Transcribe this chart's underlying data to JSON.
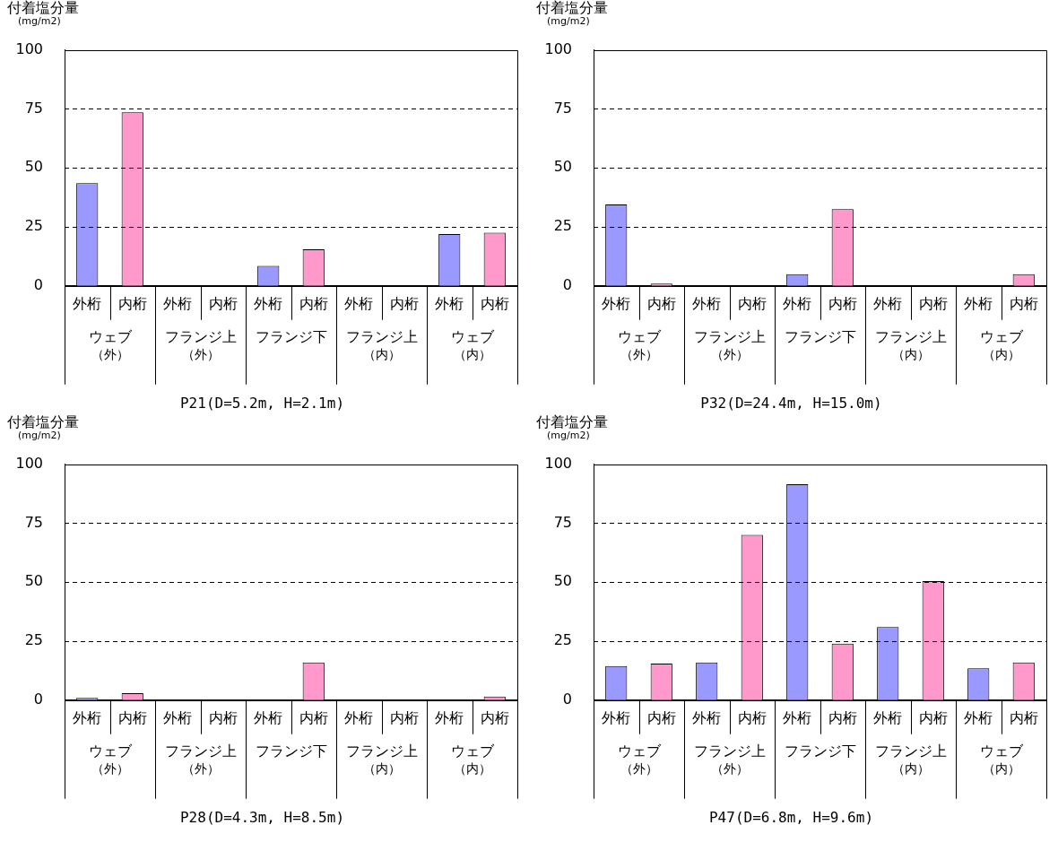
{
  "chart_data": [
    {
      "type": "bar",
      "title": "P21(D=5.2m, H=2.1m)",
      "ylabel": "付着塩分量(mg/m2)",
      "categories": [
        "外桁",
        "内桁",
        "外桁",
        "内桁",
        "外桁",
        "内桁",
        "外桁",
        "内桁",
        "外桁",
        "内桁"
      ],
      "values": [
        43.5,
        73.5,
        0,
        0,
        8.5,
        15.5,
        0,
        0,
        22,
        22.5
      ],
      "colors": [
        "#9999ff",
        "#ff99cc",
        "#9999ff",
        "#ff99cc",
        "#9999ff",
        "#ff99cc",
        "#9999ff",
        "#ff99cc",
        "#9999ff",
        "#ff99cc"
      ],
      "ylim": [
        0,
        100
      ],
      "yticks": [
        0,
        25,
        50,
        75,
        100
      ],
      "grid": "y",
      "annotations": [
        "ウェブ（外）",
        "フランジ上（外）",
        "フランジ下",
        "フランジ上（内）",
        "ウェブ（内）"
      ]
    },
    {
      "type": "bar",
      "title": "P32(D=24.4m, H=15.0m)",
      "ylabel": "付着塩分量(mg/m2)",
      "categories": [
        "外桁",
        "内桁",
        "外桁",
        "内桁",
        "外桁",
        "内桁",
        "外桁",
        "内桁",
        "外桁",
        "内桁"
      ],
      "values": [
        34.5,
        1,
        0,
        0,
        5,
        32.5,
        0,
        0,
        0,
        5
      ],
      "colors": [
        "#9999ff",
        "#ff99cc",
        "#9999ff",
        "#ff99cc",
        "#9999ff",
        "#ff99cc",
        "#9999ff",
        "#ff99cc",
        "#9999ff",
        "#ff99cc"
      ],
      "ylim": [
        0,
        100
      ],
      "yticks": [
        0,
        25,
        50,
        75,
        100
      ],
      "grid": "y",
      "annotations": [
        "ウェブ（外）",
        "フランジ上（外）",
        "フランジ下",
        "フランジ上（内）",
        "ウェブ（内）"
      ]
    },
    {
      "type": "bar",
      "title": "P28(D=4.3m, H=8.5m)",
      "ylabel": "付着塩分量(mg/m2)",
      "categories": [
        "外桁",
        "内桁",
        "外桁",
        "内桁",
        "外桁",
        "内桁",
        "外桁",
        "内桁",
        "外桁",
        "内桁"
      ],
      "values": [
        1,
        3,
        0,
        0,
        0,
        16,
        0,
        0,
        0,
        1.5
      ],
      "colors": [
        "#9999ff",
        "#ff99cc",
        "#9999ff",
        "#ff99cc",
        "#9999ff",
        "#ff99cc",
        "#9999ff",
        "#ff99cc",
        "#9999ff",
        "#ff99cc"
      ],
      "ylim": [
        0,
        100
      ],
      "yticks": [
        0,
        25,
        50,
        75,
        100
      ],
      "grid": "y",
      "annotations": [
        "ウェブ（外）",
        "フランジ上（外）",
        "フランジ下",
        "フランジ上（内）",
        "ウェブ（内）"
      ]
    },
    {
      "type": "bar",
      "title": "P47(D=6.8m, H=9.6m)",
      "ylabel": "付着塩分量(mg/m2)",
      "categories": [
        "外桁",
        "内桁",
        "外桁",
        "内桁",
        "外桁",
        "内桁",
        "外桁",
        "内桁",
        "外桁",
        "内桁"
      ],
      "values": [
        14.5,
        15.5,
        16,
        70,
        91.5,
        24,
        31,
        50.5,
        13.5,
        16
      ],
      "colors": [
        "#9999ff",
        "#ff99cc",
        "#9999ff",
        "#ff99cc",
        "#9999ff",
        "#ff99cc",
        "#9999ff",
        "#ff99cc",
        "#9999ff",
        "#ff99cc"
      ],
      "ylim": [
        0,
        100
      ],
      "yticks": [
        0,
        25,
        50,
        75,
        100
      ],
      "grid": "y",
      "annotations": [
        "ウェブ（外）",
        "フランジ上（外）",
        "フランジ下",
        "フランジ上（内）",
        "ウェブ（内）"
      ]
    }
  ]
}
